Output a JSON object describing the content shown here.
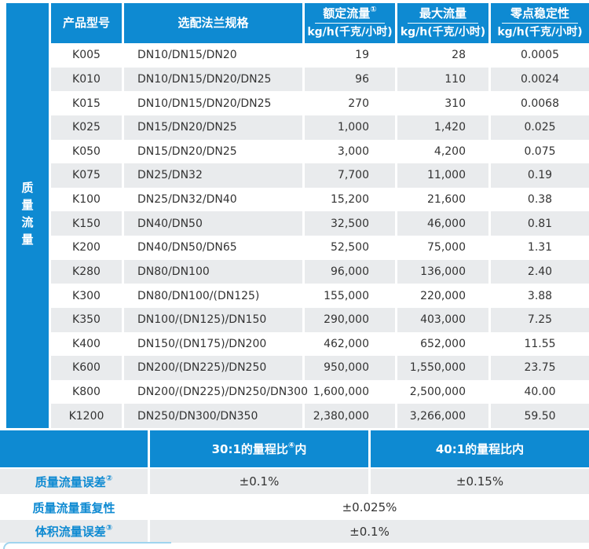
{
  "colors": {
    "accent": "#0e8ad2",
    "row_alt": "#e9ebed",
    "deco_border": "#9fd4ef"
  },
  "sidebar": {
    "label": "质量流量"
  },
  "table": {
    "headers": {
      "model": "产品型号",
      "flange": "选配法兰规格",
      "rated": {
        "title": "额定流量",
        "sup": "①",
        "unit": "kg/h(千克/小时)"
      },
      "max": {
        "title": "最大流量",
        "sup": "",
        "unit": "kg/h(千克/小时)"
      },
      "zero": {
        "title": "零点稳定性",
        "sup": "",
        "unit": "kg/h(千克/小时)"
      }
    },
    "rows": [
      {
        "model": "K005",
        "flange": "DN10/DN15/DN20",
        "rated": "19",
        "max": "28",
        "zero": "0.0005"
      },
      {
        "model": "K010",
        "flange": "DN10/DN15/DN20/DN25",
        "rated": "96",
        "max": "110",
        "zero": "0.0024"
      },
      {
        "model": "K015",
        "flange": "DN10/DN15/DN20/DN25",
        "rated": "270",
        "max": "310",
        "zero": "0.0068"
      },
      {
        "model": "K025",
        "flange": "DN15/DN20/DN25",
        "rated": "1,000",
        "max": "1,420",
        "zero": "0.025"
      },
      {
        "model": "K050",
        "flange": "DN15/DN20/DN25",
        "rated": "3,000",
        "max": "4,200",
        "zero": "0.075"
      },
      {
        "model": "K075",
        "flange": "DN25/DN32",
        "rated": "7,700",
        "max": "11,000",
        "zero": "0.19"
      },
      {
        "model": "K100",
        "flange": "DN25/DN32/DN40",
        "rated": "15,200",
        "max": "21,600",
        "zero": "0.38"
      },
      {
        "model": "K150",
        "flange": "DN40/DN50",
        "rated": "32,500",
        "max": "46,000",
        "zero": "0.81"
      },
      {
        "model": "K200",
        "flange": "DN40/DN50/DN65",
        "rated": "52,500",
        "max": "75,000",
        "zero": "1.31"
      },
      {
        "model": "K280",
        "flange": "DN80/DN100",
        "rated": "96,000",
        "max": "136,000",
        "zero": "2.40"
      },
      {
        "model": "K300",
        "flange": "DN80/DN100/(DN125)",
        "rated": "155,000",
        "max": "220,000",
        "zero": "3.88"
      },
      {
        "model": "K350",
        "flange": "DN100/(DN125)/DN150",
        "rated": "290,000",
        "max": "403,000",
        "zero": "7.25"
      },
      {
        "model": "K400",
        "flange": "DN150/(DN175)/DN200",
        "rated": "462,000",
        "max": "652,000",
        "zero": "11.55"
      },
      {
        "model": "K600",
        "flange": "DN200/(DN225)/DN250",
        "rated": "950,000",
        "max": "1,550,000",
        "zero": "23.75"
      },
      {
        "model": "K800",
        "flange": "DN200/(DN225)/DN250/DN300",
        "rated": "1,600,000",
        "max": "2,500,000",
        "zero": "40.00"
      },
      {
        "model": "K1200",
        "flange": "DN250/DN300/DN350",
        "rated": "2,380,000",
        "max": "3,266,000",
        "zero": "59.50"
      }
    ]
  },
  "accuracy": {
    "header": {
      "col1": {
        "text": "30:1的量程比",
        "sup": "④",
        "suffix": "内"
      },
      "col2": "40:1的量程比内"
    },
    "rows": [
      {
        "label": "质量流量误差",
        "sup": "②",
        "values": [
          "±0.1%",
          "±0.15%"
        ]
      },
      {
        "label": "质量流量重复性",
        "sup": "",
        "values": [
          "±0.025%"
        ]
      },
      {
        "label": "体积流量误差",
        "sup": "③",
        "values": [
          "±0.1%"
        ]
      }
    ]
  }
}
